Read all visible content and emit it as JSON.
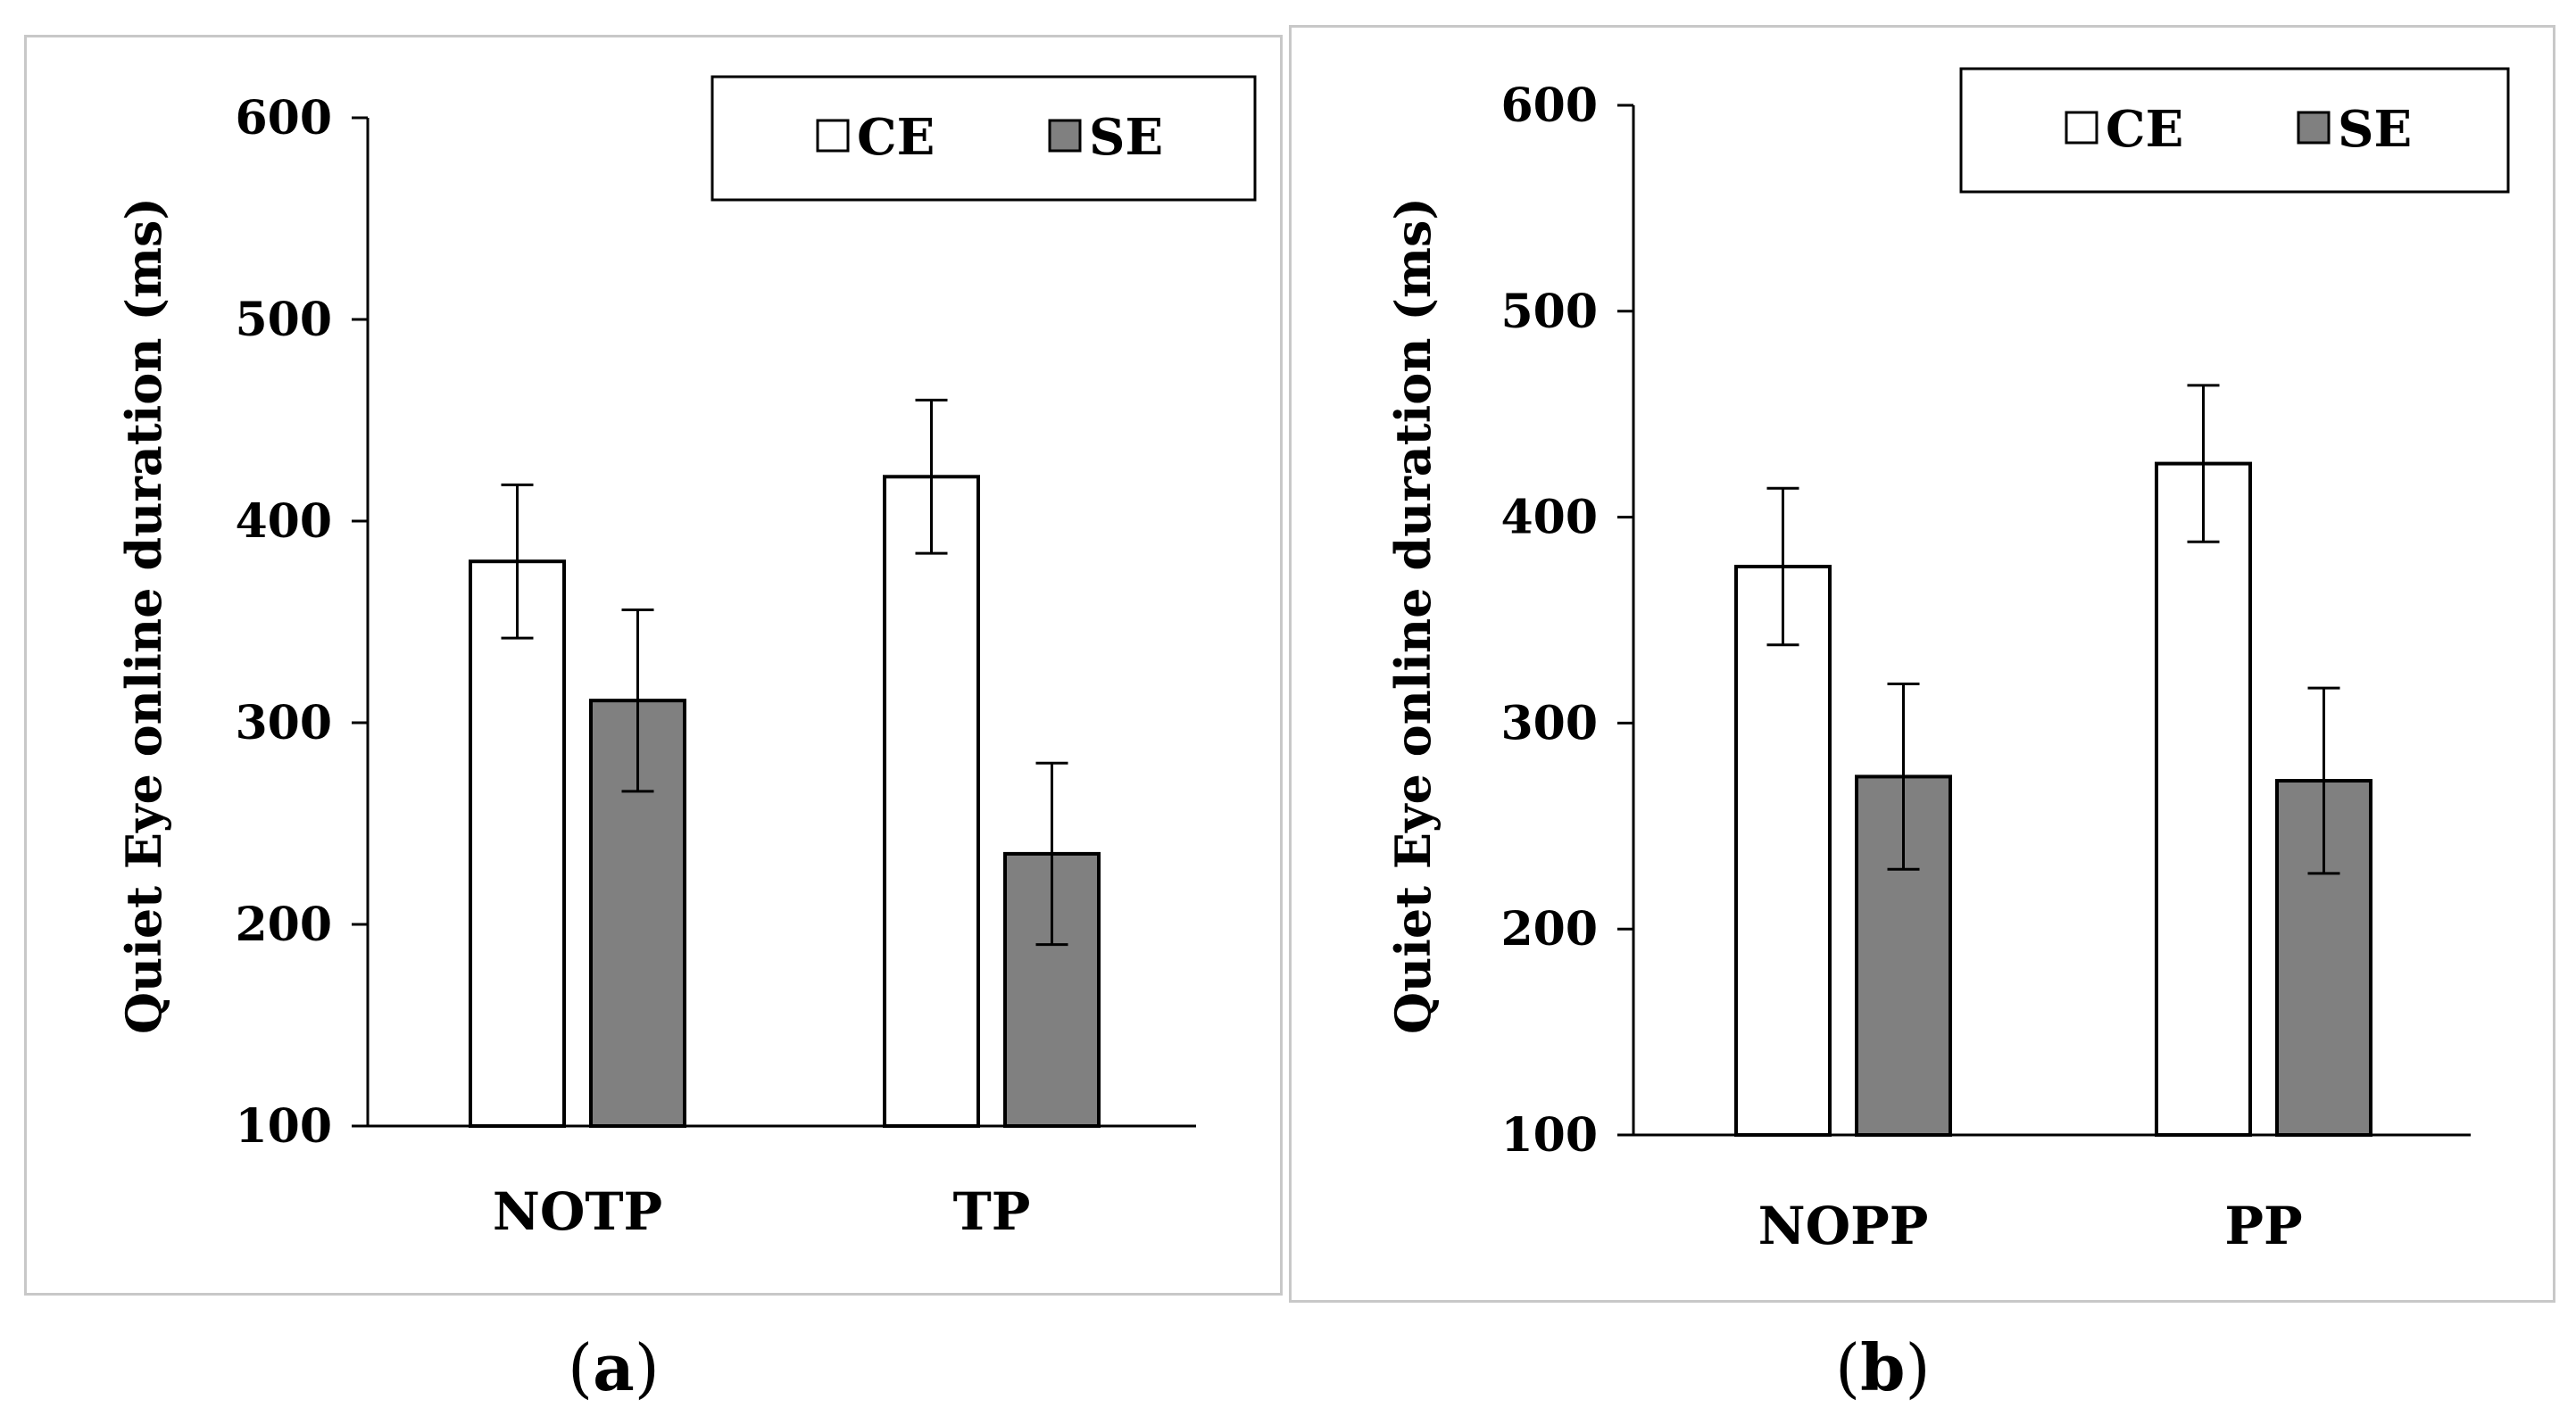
{
  "colors": {
    "ce_fill": "#ffffff",
    "se_fill": "#808080",
    "stroke": "#000000",
    "panel_border": "#c8c8c8"
  },
  "legend_labels": {
    "ce": "CE",
    "se": "SE"
  },
  "captions": {
    "a": "a",
    "b": "b"
  },
  "chart_data": [
    {
      "type": "bar",
      "panel": "a",
      "title": "",
      "xlabel": "",
      "ylabel": "Quiet Eye online duration (ms)",
      "ylim": [
        100,
        600
      ],
      "yticks": [
        "100",
        "200",
        "300",
        "400",
        "500",
        "600"
      ],
      "categories": [
        "NOTP",
        "TP"
      ],
      "series": [
        {
          "name": "CE",
          "values": [
            380,
            422
          ],
          "errors": [
            38,
            38
          ]
        },
        {
          "name": "SE",
          "values": [
            311,
            235
          ],
          "errors": [
            45,
            45
          ]
        }
      ],
      "legend": "top-right"
    },
    {
      "type": "bar",
      "panel": "b",
      "title": "",
      "xlabel": "",
      "ylabel": "Quiet Eye online duration (ms)",
      "ylim": [
        100,
        600
      ],
      "yticks": [
        "100",
        "200",
        "300",
        "400",
        "500",
        "600"
      ],
      "categories": [
        "NOPP",
        "PP"
      ],
      "series": [
        {
          "name": "CE",
          "values": [
            376,
            426
          ],
          "errors": [
            38,
            38
          ]
        },
        {
          "name": "SE",
          "values": [
            274,
            272
          ],
          "errors": [
            45,
            45
          ]
        }
      ],
      "legend": "top-right"
    }
  ]
}
